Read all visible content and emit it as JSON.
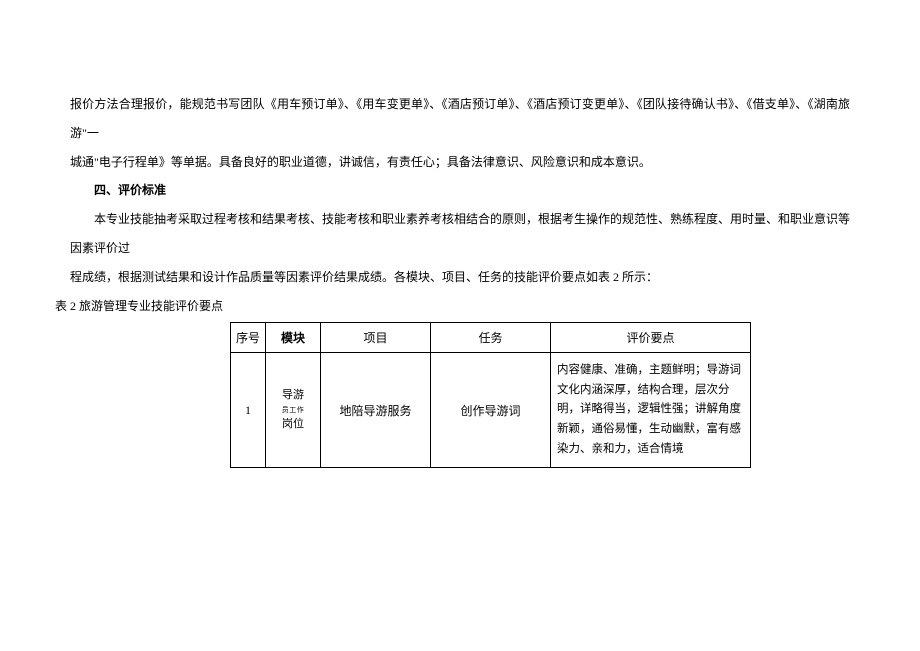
{
  "para1_a": "报价方法合理报价，能规范书写团队《用车预订单》、《用车变更单》、《酒店预订单》、《酒店预订变更单》、《团队接待确认书》、《借支单》、《湖南旅游\"一",
  "para1_b": "城通\"电子行程单》等单据。具备良好的职业道德，讲诚信，有责任心；具备法律意识、风险意识和成本意识。",
  "heading": "四、评价标准",
  "para2_a": "本专业技能抽考采取过程考核和结果考核、技能考核和职业素养考核相结合的原则，根据考生操作的规范性、熟练程度、用时量、和职业意识等因素评价过",
  "para2_b": "程成绩，根据测试结果和设计作品质量等因素评价结果成绩。各模块、项目、任务的技能评价要点如表 2 所示：",
  "caption": "表 2 旅游管理专业技能评价要点",
  "table": {
    "headers": {
      "seq": "序号",
      "module": "模块",
      "project": "项目",
      "task": "任务",
      "points": "评价要点"
    },
    "row": {
      "seq": "1",
      "module_main": "导游",
      "module_sub": "员工作",
      "module_end": "岗位",
      "project": "地陪导游服务",
      "task": "创作导游词",
      "points": "内容健康、准确，主题鲜明；导游词文化内涵深厚，结构合理，层次分明，详略得当，逻辑性强；讲解角度新颖，通俗易懂，生动幽默，富有感染力、亲和力，适合情境"
    }
  }
}
